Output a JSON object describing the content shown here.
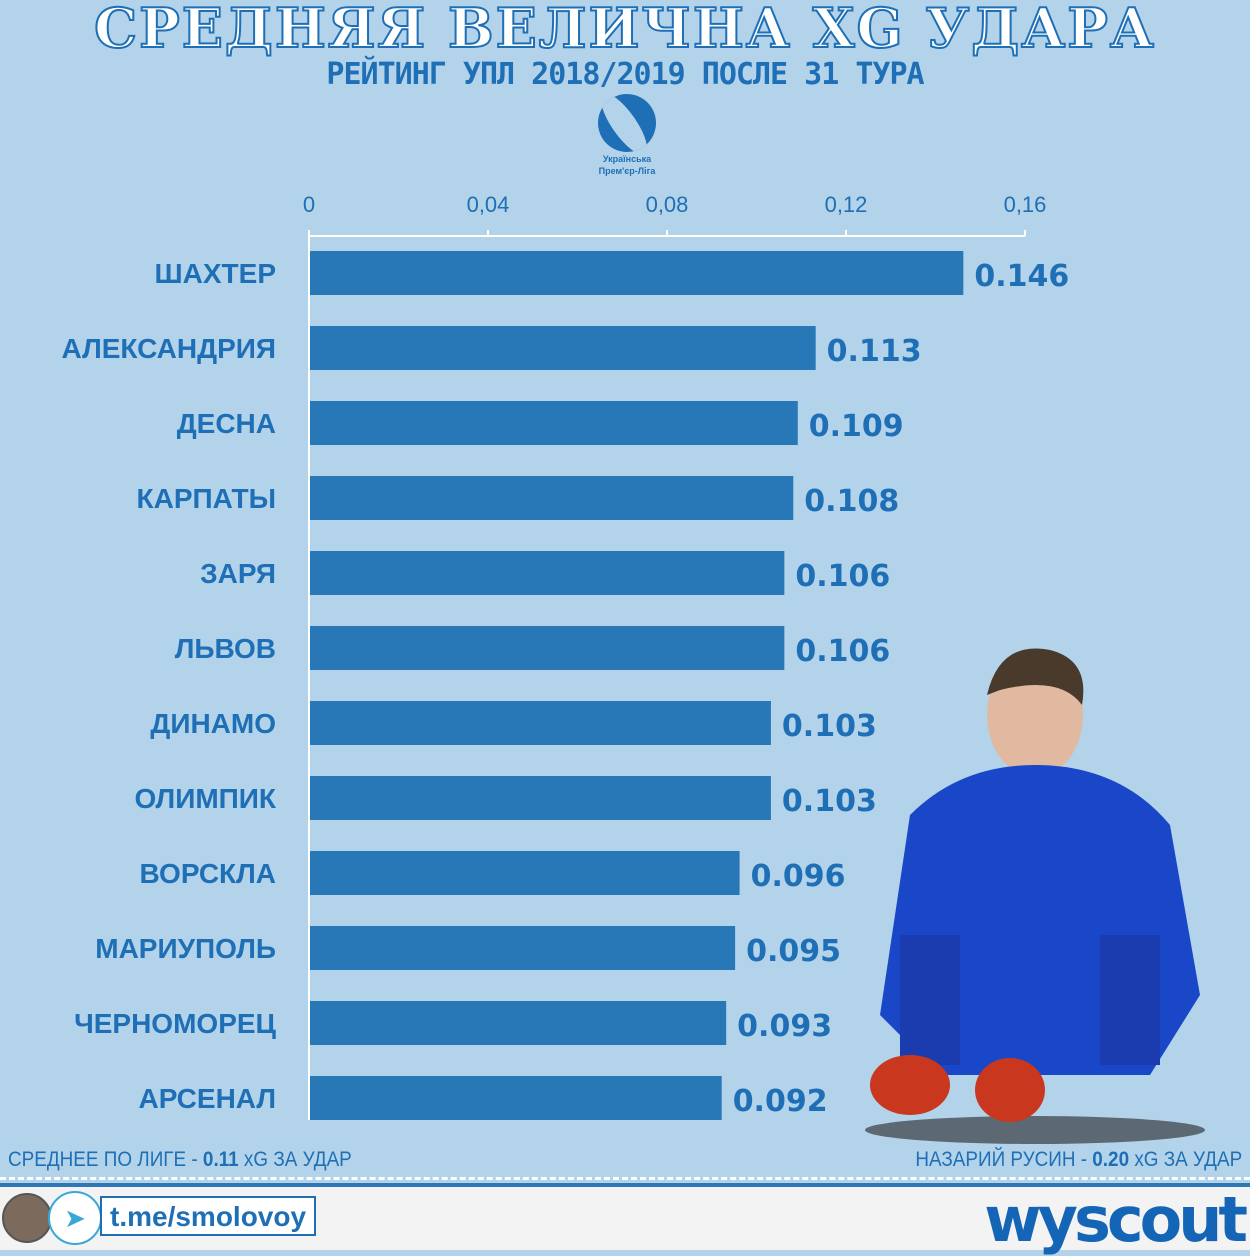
{
  "title": "СРЕДНЯЯ ВЕЛИЧНА XG УДАРА",
  "subtitle": "РЕЙТИНГ УПЛ 2018/2019 ПОСЛЕ 31 ТУРА",
  "league_logo": {
    "text": "Українська Прем'єр-Ліга",
    "line1": "Українська",
    "line2": "Прем'єр-Ліга"
  },
  "chart_data": {
    "type": "bar",
    "orientation": "horizontal",
    "categories": [
      "ШАХТЕР",
      "АЛЕКСАНДРИЯ",
      "ДЕСНА",
      "КАРПАТЫ",
      "ЗАРЯ",
      "ЛЬВОВ",
      "ДИНАМО",
      "ОЛИМПИК",
      "ВОРСКЛА",
      "МАРИУПОЛЬ",
      "ЧЕРНОМОРЕЦ",
      "АРСЕНАЛ"
    ],
    "values": [
      0.146,
      0.113,
      0.109,
      0.108,
      0.106,
      0.106,
      0.103,
      0.103,
      0.096,
      0.095,
      0.093,
      0.092
    ],
    "value_labels": [
      "0.146",
      "0.113",
      "0.109",
      "0.108",
      "0.106",
      "0.106",
      "0.103",
      "0.103",
      "0.096",
      "0.095",
      "0.093",
      "0.092"
    ],
    "highlight": "ДИНАМО",
    "xlim": [
      0,
      0.16
    ],
    "ticks": [
      0,
      0.04,
      0.08,
      0.12,
      0.16
    ],
    "tick_labels": [
      "0",
      "0,04",
      "0,08",
      "0,12",
      "0,16"
    ],
    "axis_position": "top",
    "grid": false,
    "colors": {
      "bar": "#2878b8",
      "label": "#1e6fb5",
      "highlight": "#e8185a"
    }
  },
  "notes": {
    "left": {
      "pre": "СРЕДНЕЕ ПО ЛИГЕ - ",
      "val": "0.11",
      "post": " xG  ЗА УДАР"
    },
    "right": {
      "pre": "НАЗАРИЙ РУСИН - ",
      "val": "0.20",
      "post": " xG  ЗА УДАР"
    }
  },
  "footer": {
    "link": "t.me/smolovoy",
    "brand": "wyscout",
    "icons": [
      "avatar",
      "telegram-icon"
    ]
  }
}
